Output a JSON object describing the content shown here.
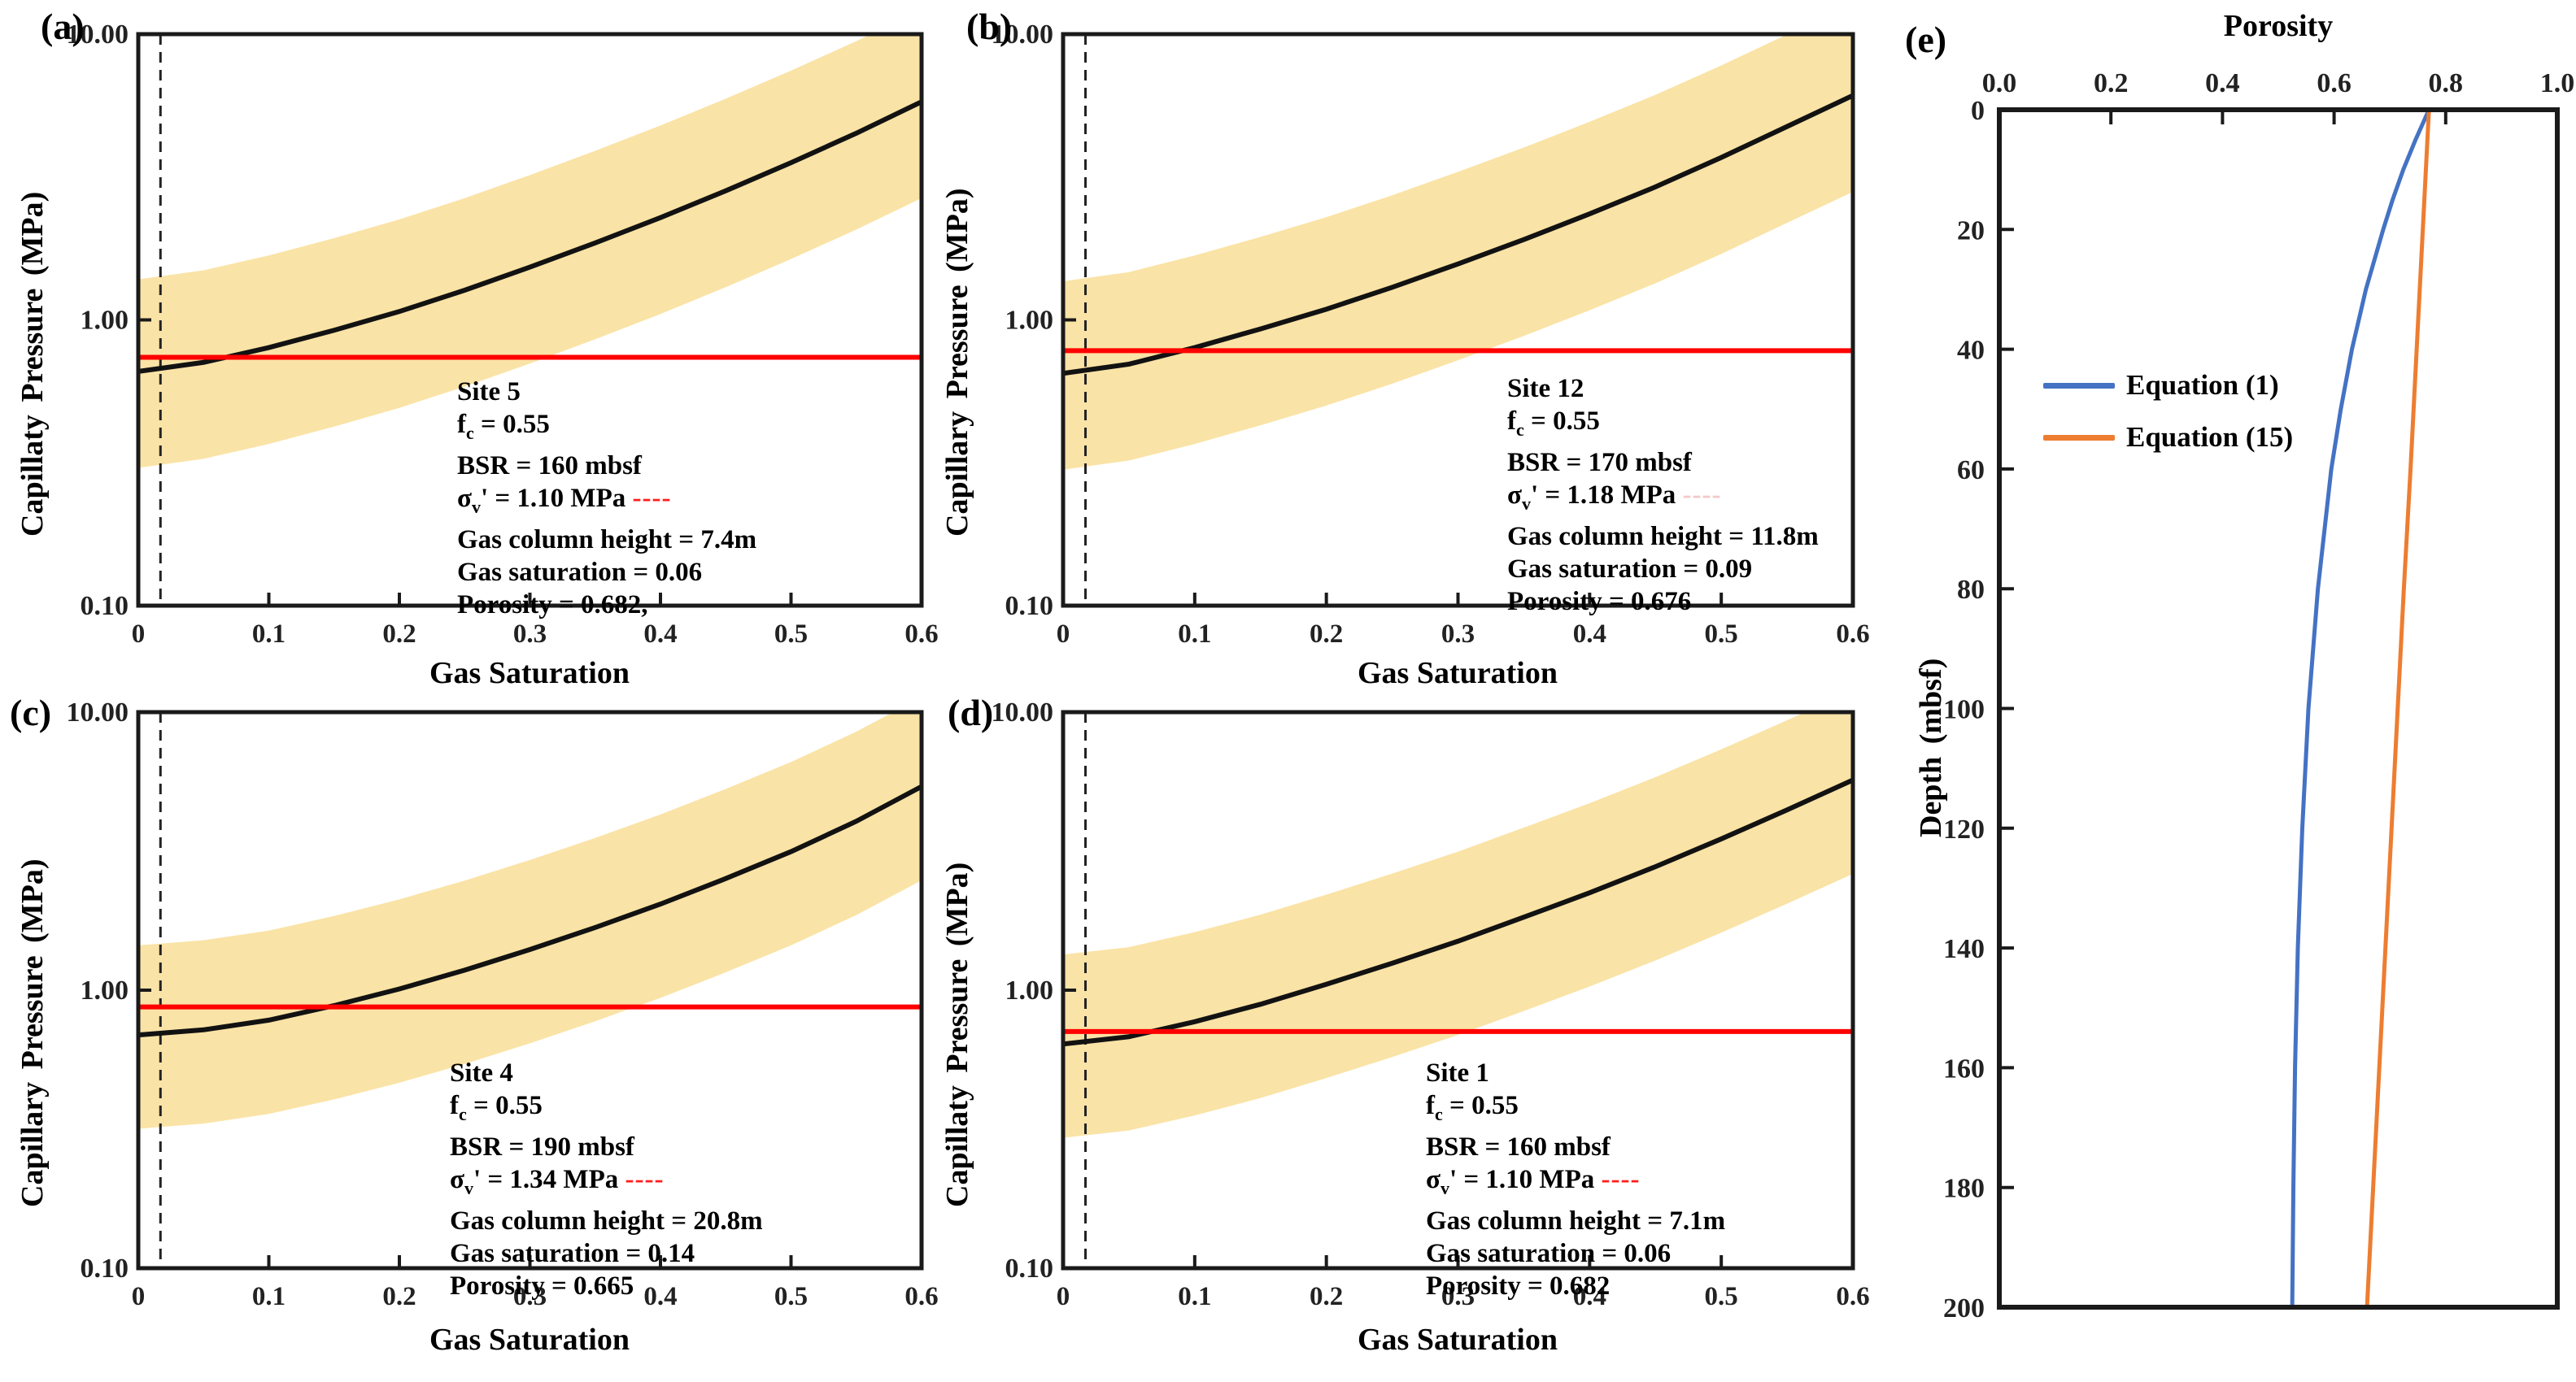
{
  "colors": {
    "band": "#FAE3A6",
    "curve": "#121212",
    "red_line": "#FF0000",
    "dashed_line": "#222222",
    "frame": "#1a1a1a",
    "eq1_blue": "#4472C4",
    "eq15_orange": "#ED7D31"
  },
  "chart_data": [
    {
      "id": "a",
      "panel_label": "(a)",
      "type": "line",
      "xlabel": "Gas Saturation",
      "ylabel": "Capillaty Pressure (MPa)",
      "x_ticks": [
        0,
        0.1,
        0.2,
        0.3,
        0.4,
        0.5,
        0.6
      ],
      "xlim": [
        0,
        0.6
      ],
      "y_scale": "log",
      "ylim": [
        0.1,
        10
      ],
      "y_ticks": [
        {
          "v": 10,
          "label": "10.00"
        },
        {
          "v": 1,
          "label": "1.00"
        },
        {
          "v": 0.1,
          "label": "0.10"
        }
      ],
      "curve_x": [
        0,
        0.05,
        0.1,
        0.15,
        0.2,
        0.25,
        0.3,
        0.35,
        0.4,
        0.45,
        0.5,
        0.55,
        0.6
      ],
      "curve_y": [
        0.66,
        0.71,
        0.8,
        0.92,
        1.07,
        1.27,
        1.53,
        1.86,
        2.28,
        2.83,
        3.55,
        4.5,
        5.8
      ],
      "band_factor_upper": 2.1,
      "band_factor_lower": 0.46,
      "red_line_mpa": 0.74,
      "dashed_vline_x": 0.017,
      "params": {
        "site": "Site 5",
        "f_c": "0.55",
        "BSR": "160 mbsf",
        "sigma_v_prime": "1.10 MPa",
        "gas_column_height": "7.4m",
        "gas_saturation": "0.06",
        "porosity": "0.682"
      },
      "annotation_lines": [
        [
          {
            "t": "Site 5"
          }
        ],
        [
          {
            "t": "f"
          },
          {
            "t": "c",
            "sub": true
          },
          {
            "t": " = 0.55"
          }
        ],
        [
          {
            "t": "BSR = 160 mbsf"
          }
        ],
        [
          {
            "t": "σ"
          },
          {
            "t": "v",
            "sub": true
          },
          {
            "t": "' = 1.10 MPa  "
          },
          {
            "t": "----",
            "color": "#FF1F1F",
            "dash": true
          }
        ],
        [
          {
            "t": "Gas column height = 7.4m"
          }
        ],
        [
          {
            "t": "Gas saturation = 0.06"
          }
        ],
        [
          {
            "t": "Porosity = 0.682,"
          }
        ]
      ]
    },
    {
      "id": "b",
      "panel_label": "(b)",
      "type": "line",
      "xlabel": "Gas Saturation",
      "ylabel": "Capillary Pressure (MPa)",
      "x_ticks": [
        0,
        0.1,
        0.2,
        0.3,
        0.4,
        0.5,
        0.6
      ],
      "xlim": [
        0,
        0.6
      ],
      "y_scale": "log",
      "ylim": [
        0.1,
        10
      ],
      "y_ticks": [
        {
          "v": 10,
          "label": "10.00"
        },
        {
          "v": 1,
          "label": "1.00"
        },
        {
          "v": 0.1,
          "label": "0.10"
        }
      ],
      "curve_x": [
        0,
        0.05,
        0.1,
        0.15,
        0.2,
        0.25,
        0.3,
        0.35,
        0.4,
        0.45,
        0.5,
        0.55,
        0.6
      ],
      "curve_y": [
        0.65,
        0.7,
        0.8,
        0.93,
        1.09,
        1.3,
        1.57,
        1.91,
        2.35,
        2.92,
        3.7,
        4.75,
        6.1
      ],
      "band_factor_upper": 2.1,
      "band_factor_lower": 0.46,
      "red_line_mpa": 0.78,
      "dashed_vline_x": 0.017,
      "params": {
        "site": "Site 12",
        "f_c": "0.55",
        "BSR": "170 mbsf",
        "sigma_v_prime": "1.18 MPa",
        "gas_column_height": "11.8m",
        "gas_saturation": "0.09",
        "porosity": "0.676"
      },
      "annotation_lines": [
        [
          {
            "t": "Site 12"
          }
        ],
        [
          {
            "t": "f"
          },
          {
            "t": "c",
            "sub": true
          },
          {
            "t": " = 0.55"
          }
        ],
        [
          {
            "t": "BSR = 170 mbsf"
          }
        ],
        [
          {
            "t": "σ"
          },
          {
            "t": "v",
            "sub": true
          },
          {
            "t": "' = 1.18 MPa  "
          },
          {
            "t": "----",
            "color": "#F4C9C9",
            "dash": true
          }
        ],
        [
          {
            "t": "Gas column height = 11.8m"
          }
        ],
        [
          {
            "t": "Gas saturation = 0.09"
          }
        ],
        [
          {
            "t": "Porosity = 0.676"
          }
        ]
      ]
    },
    {
      "id": "c",
      "panel_label": "(c)",
      "type": "line",
      "xlabel": "Gas Saturation",
      "ylabel": "Capillary Pressure (MPa)",
      "x_ticks": [
        0,
        0.1,
        0.2,
        0.3,
        0.4,
        0.5,
        0.6
      ],
      "xlim": [
        0,
        0.6
      ],
      "y_scale": "log",
      "ylim": [
        0.1,
        10
      ],
      "y_ticks": [
        {
          "v": 10,
          "label": "10.00"
        },
        {
          "v": 1,
          "label": "1.00"
        },
        {
          "v": 0.1,
          "label": "0.10"
        }
      ],
      "curve_x": [
        0,
        0.05,
        0.1,
        0.15,
        0.2,
        0.25,
        0.3,
        0.35,
        0.4,
        0.45,
        0.5,
        0.55,
        0.6
      ],
      "curve_y": [
        0.69,
        0.72,
        0.78,
        0.88,
        1.01,
        1.18,
        1.4,
        1.68,
        2.04,
        2.52,
        3.15,
        4.05,
        5.4
      ],
      "band_factor_upper": 2.1,
      "band_factor_lower": 0.46,
      "red_line_mpa": 0.87,
      "dashed_vline_x": 0.017,
      "params": {
        "site": "Site 4",
        "f_c": "0.55",
        "BSR": "190 mbsf",
        "sigma_v_prime": "1.34 MPa",
        "gas_column_height": "20.8m",
        "gas_saturation": "0.14",
        "porosity": "0.665"
      },
      "annotation_lines": [
        [
          {
            "t": "Site 4"
          }
        ],
        [
          {
            "t": "f"
          },
          {
            "t": "c",
            "sub": true
          },
          {
            "t": " = 0.55"
          }
        ],
        [
          {
            "t": "BSR = 190 mbsf"
          }
        ],
        [
          {
            "t": "σ"
          },
          {
            "t": "v",
            "sub": true
          },
          {
            "t": "' = 1.34 MPa  "
          },
          {
            "t": "----",
            "color": "#FF1F1F",
            "dash": true
          }
        ],
        [
          {
            "t": "Gas column height = 20.8m"
          }
        ],
        [
          {
            "t": "Gas saturation = 0.14"
          }
        ],
        [
          {
            "t": "Porosity = 0.665"
          }
        ]
      ]
    },
    {
      "id": "d",
      "panel_label": "(d)",
      "type": "line",
      "xlabel": "Gas Saturation",
      "ylabel": "Capillaty Pressure (MPa)",
      "x_ticks": [
        0,
        0.1,
        0.2,
        0.3,
        0.4,
        0.5,
        0.6
      ],
      "xlim": [
        0,
        0.6
      ],
      "y_scale": "log",
      "ylim": [
        0.1,
        10
      ],
      "y_ticks": [
        {
          "v": 10,
          "label": "10.00"
        },
        {
          "v": 1,
          "label": "1.00"
        },
        {
          "v": 0.1,
          "label": "0.10"
        }
      ],
      "curve_x": [
        0,
        0.05,
        0.1,
        0.15,
        0.2,
        0.25,
        0.3,
        0.35,
        0.4,
        0.45,
        0.5,
        0.55,
        0.6
      ],
      "curve_y": [
        0.64,
        0.68,
        0.77,
        0.89,
        1.05,
        1.25,
        1.5,
        1.83,
        2.24,
        2.78,
        3.5,
        4.45,
        5.7
      ],
      "band_factor_upper": 2.1,
      "band_factor_lower": 0.46,
      "red_line_mpa": 0.71,
      "dashed_vline_x": 0.017,
      "params": {
        "site": "Site 1",
        "f_c": "0.55",
        "BSR": "160 mbsf",
        "sigma_v_prime": "1.10 MPa",
        "gas_column_height": "7.1m",
        "gas_saturation": "0.06",
        "porosity": "0.682"
      },
      "annotation_lines": [
        [
          {
            "t": "Site 1"
          }
        ],
        [
          {
            "t": "f"
          },
          {
            "t": "c",
            "sub": true
          },
          {
            "t": " = 0.55"
          }
        ],
        [
          {
            "t": "BSR = 160 mbsf"
          }
        ],
        [
          {
            "t": "σ"
          },
          {
            "t": "v",
            "sub": true
          },
          {
            "t": "' = 1.10 MPa  "
          },
          {
            "t": "----",
            "color": "#FF1F1F",
            "dash": true
          }
        ],
        [
          {
            "t": "Gas column height = 7.1m"
          }
        ],
        [
          {
            "t": "Gas saturation = 0.06"
          }
        ],
        [
          {
            "t": "Porosity = 0.682"
          }
        ]
      ]
    },
    {
      "id": "e",
      "panel_label": "(e)",
      "type": "line",
      "xlabel_top": "Porosity",
      "ylabel": "Depth (mbsf)",
      "x_ticks": [
        0.0,
        0.2,
        0.4,
        0.6,
        0.8,
        1.0
      ],
      "xlim": [
        0,
        1
      ],
      "y_ticks": [
        0,
        20,
        40,
        60,
        80,
        100,
        120,
        140,
        160,
        180,
        200
      ],
      "ylim": [
        0,
        200
      ],
      "legend_position": "upper-left-inside",
      "series": [
        {
          "name": "Equation (1)",
          "color": "#4472C4",
          "depth": [
            0,
            5,
            10,
            15,
            20,
            30,
            40,
            50,
            60,
            80,
            100,
            120,
            140,
            160,
            180,
            200
          ],
          "porosity": [
            0.77,
            0.746,
            0.724,
            0.705,
            0.688,
            0.657,
            0.632,
            0.612,
            0.595,
            0.571,
            0.554,
            0.543,
            0.535,
            0.53,
            0.527,
            0.525
          ]
        },
        {
          "name": "Equation (15)",
          "color": "#ED7D31",
          "depth": [
            0,
            20,
            40,
            60,
            80,
            100,
            120,
            140,
            160,
            180,
            200
          ],
          "porosity": [
            0.77,
            0.759,
            0.748,
            0.737,
            0.725,
            0.714,
            0.703,
            0.692,
            0.681,
            0.67,
            0.659
          ]
        }
      ]
    }
  ]
}
